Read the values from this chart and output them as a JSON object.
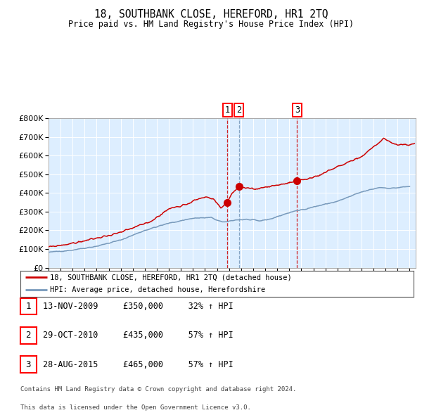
{
  "title": "18, SOUTHBANK CLOSE, HEREFORD, HR1 2TQ",
  "subtitle": "Price paid vs. HM Land Registry's House Price Index (HPI)",
  "legend_line1": "18, SOUTHBANK CLOSE, HEREFORD, HR1 2TQ (detached house)",
  "legend_line2": "HPI: Average price, detached house, Herefordshire",
  "table": [
    {
      "num": "1",
      "date": "13-NOV-2009",
      "price": "£350,000",
      "change": "32% ↑ HPI"
    },
    {
      "num": "2",
      "date": "29-OCT-2010",
      "price": "£435,000",
      "change": "57% ↑ HPI"
    },
    {
      "num": "3",
      "date": "28-AUG-2015",
      "price": "£465,000",
      "change": "57% ↑ HPI"
    }
  ],
  "sale_dates_num": [
    2009.87,
    2010.83,
    2015.65
  ],
  "sale_prices": [
    350000,
    435000,
    465000
  ],
  "footnote1": "Contains HM Land Registry data © Crown copyright and database right 2024.",
  "footnote2": "This data is licensed under the Open Government Licence v3.0.",
  "hpi_color": "#7799bb",
  "property_color": "#cc0000",
  "plot_bg_color": "#ddeeff",
  "ylim": [
    0,
    800000
  ],
  "xlim_start": 1995.0,
  "xlim_end": 2025.5,
  "hpi_anchors_x": [
    1995.0,
    1997.0,
    1999.0,
    2001.0,
    2003.0,
    2005.0,
    2007.0,
    2008.5,
    2009.5,
    2010.5,
    2011.5,
    2012.5,
    2013.5,
    2015.0,
    2017.0,
    2019.0,
    2021.0,
    2022.5,
    2023.5,
    2025.0
  ],
  "hpi_anchors_y": [
    82000,
    95000,
    115000,
    148000,
    200000,
    238000,
    265000,
    268000,
    242000,
    256000,
    258000,
    250000,
    262000,
    295000,
    325000,
    355000,
    405000,
    430000,
    425000,
    435000
  ],
  "prop_anchors_x": [
    1995.0,
    1997.0,
    1999.0,
    2001.0,
    2003.5,
    2005.0,
    2006.5,
    2007.5,
    2008.0,
    2008.75,
    2009.3,
    2009.87,
    2010.2,
    2010.83,
    2011.2,
    2012.0,
    2013.0,
    2014.0,
    2015.0,
    2015.65,
    2016.5,
    2017.5,
    2019.0,
    2021.0,
    2022.5,
    2022.83,
    2023.2,
    2023.5,
    2024.0,
    2024.5,
    2025.0,
    2025.4
  ],
  "prop_anchors_y": [
    110000,
    130000,
    158000,
    188000,
    248000,
    315000,
    342000,
    370000,
    378000,
    365000,
    320000,
    350000,
    395000,
    435000,
    428000,
    418000,
    432000,
    443000,
    453000,
    465000,
    475000,
    495000,
    540000,
    595000,
    672000,
    695000,
    680000,
    668000,
    655000,
    660000,
    658000,
    660000
  ]
}
